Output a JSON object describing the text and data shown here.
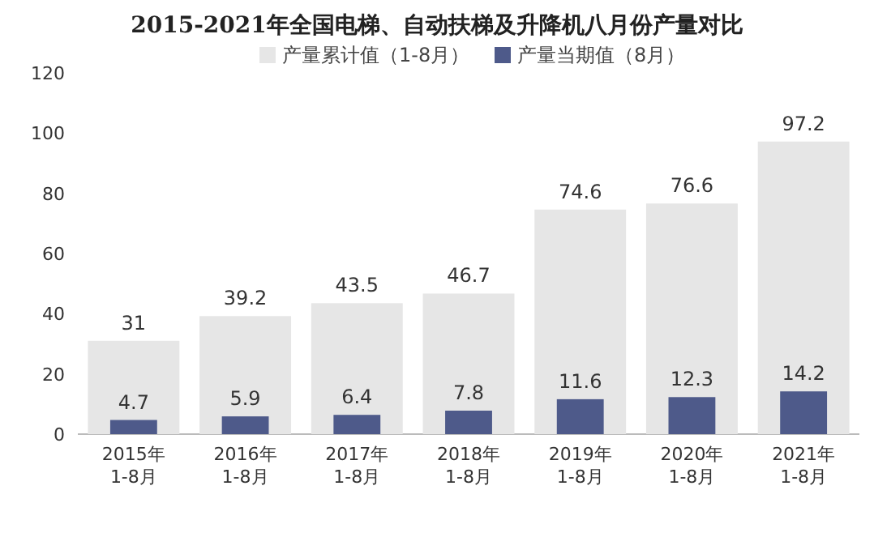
{
  "chart_data": {
    "type": "bar",
    "title": "2015-2021年全国电梯、自动扶梯及升降机八月份产量对比",
    "categories": [
      "2015年 1-8月",
      "2016年 1-8月",
      "2017年 1-8月",
      "2018年 1-8月",
      "2019年 1-8月",
      "2020年 1-8月",
      "2021年 1-8月"
    ],
    "series": [
      {
        "name": "产量累计值（1-8月）",
        "color": "#e6e6e6",
        "values": [
          31,
          39.2,
          43.5,
          46.7,
          74.6,
          76.6,
          97.2
        ]
      },
      {
        "name": "产量当期值（8月）",
        "color": "#4e5a8a",
        "values": [
          4.7,
          5.9,
          6.4,
          7.8,
          11.6,
          12.3,
          14.2
        ]
      }
    ],
    "ylim": [
      0,
      120
    ],
    "yticks": [
      0,
      20,
      40,
      60,
      80,
      100,
      120
    ],
    "data_labels": true,
    "legend": "top",
    "grid": false
  }
}
